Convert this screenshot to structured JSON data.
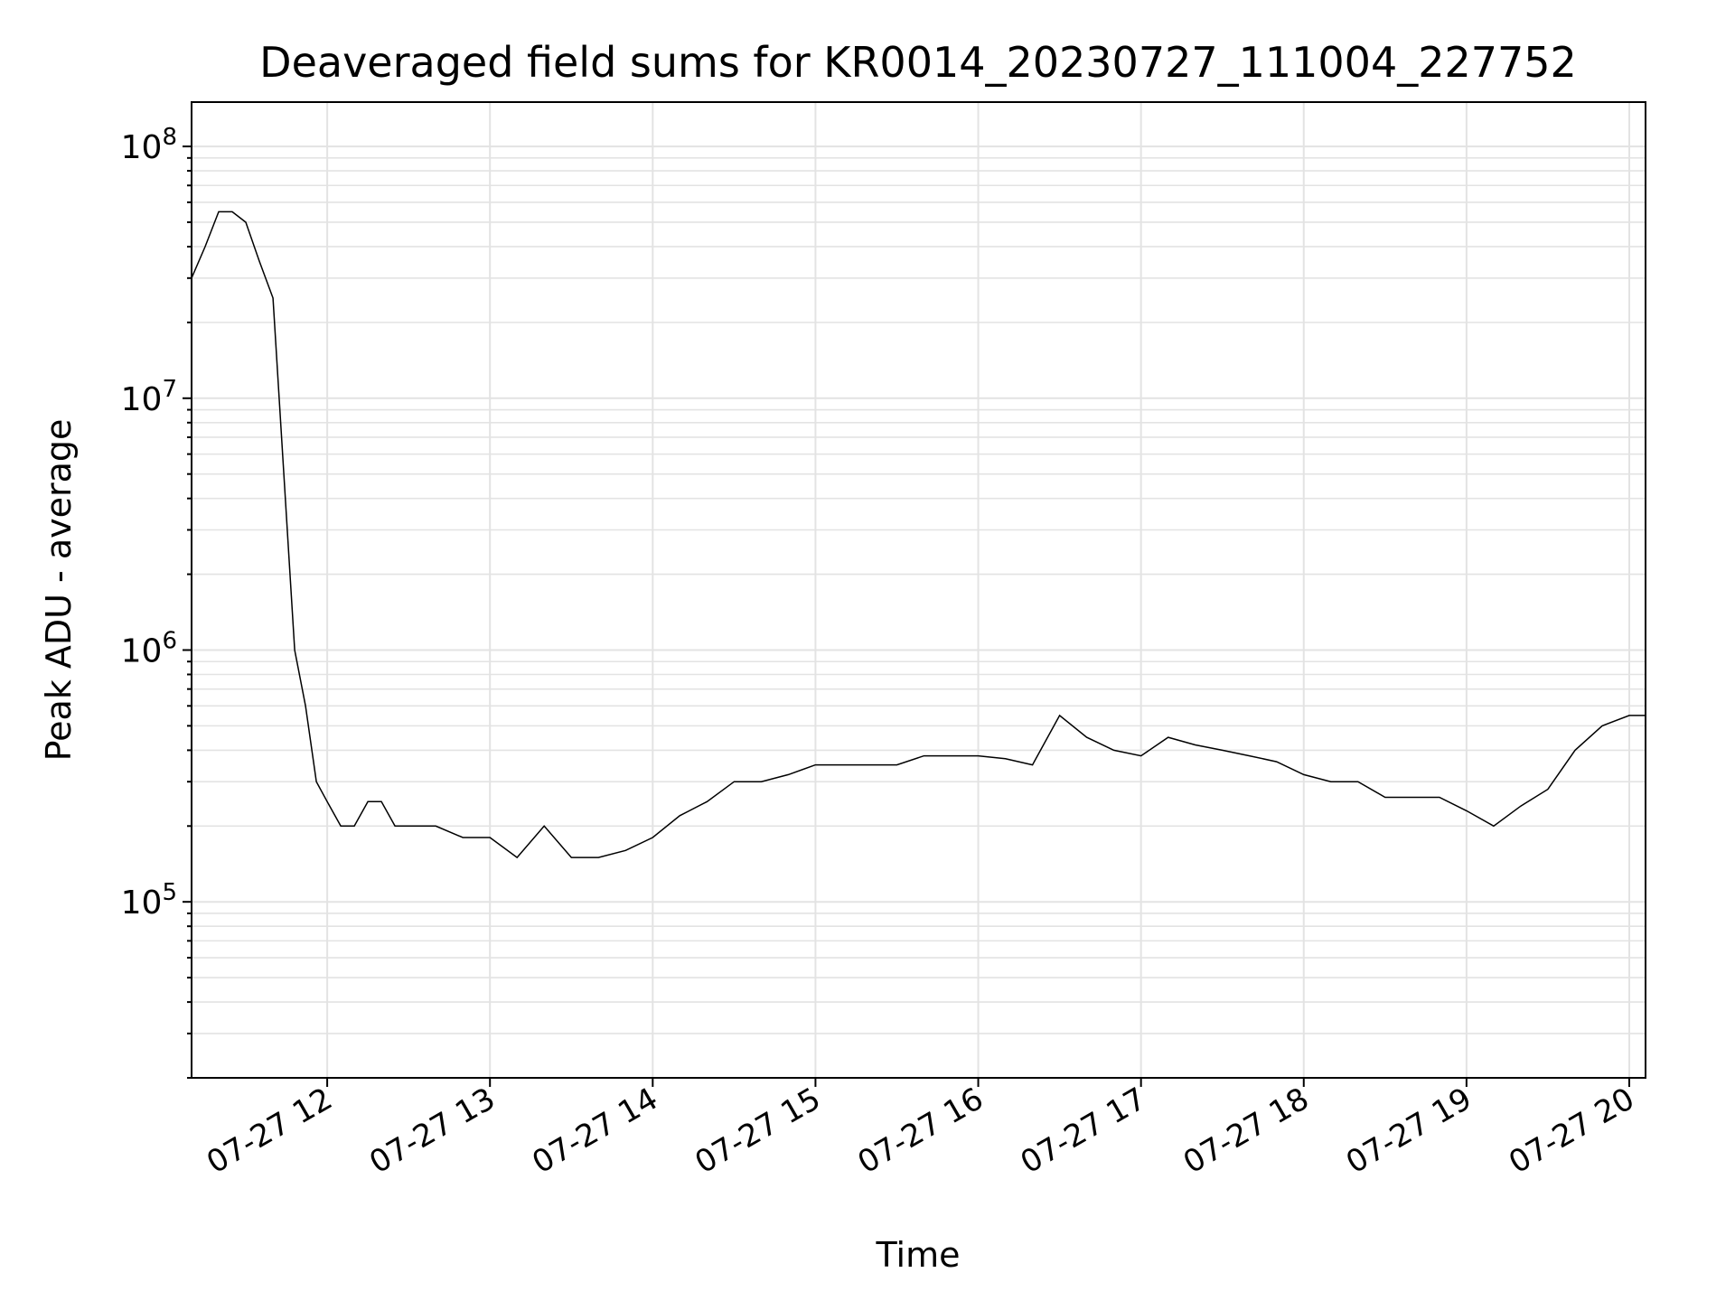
{
  "chart_data": {
    "type": "line",
    "title": "Deaveraged field sums for KR0014_20230727_111004_227752",
    "xlabel": "Time",
    "ylabel": "Peak ADU - average",
    "yscale": "log",
    "ylim": [
      20000,
      150000000
    ],
    "xlim": [
      "2023-07-27 11:10",
      "2023-07-27 20:06"
    ],
    "grid": true,
    "legend": "none",
    "line_color": "#000000",
    "x_tick_labels": [
      "07-27 12",
      "07-27 13",
      "07-27 14",
      "07-27 15",
      "07-27 16",
      "07-27 17",
      "07-27 18",
      "07-27 19",
      "07-27 20"
    ],
    "y_tick_labels": [
      {
        "base": "10",
        "exp": "5",
        "value": 100000
      },
      {
        "base": "10",
        "exp": "6",
        "value": 1000000
      },
      {
        "base": "10",
        "exp": "7",
        "value": 10000000
      },
      {
        "base": "10",
        "exp": "8",
        "value": 100000000
      }
    ],
    "series": [
      {
        "x": [
          "2023-07-27 11:10",
          "2023-07-27 11:15",
          "2023-07-27 11:20",
          "2023-07-27 11:25",
          "2023-07-27 11:30",
          "2023-07-27 11:35",
          "2023-07-27 11:40",
          "2023-07-27 11:44",
          "2023-07-27 11:48",
          "2023-07-27 11:52",
          "2023-07-27 11:56",
          "2023-07-27 12:00",
          "2023-07-27 12:05",
          "2023-07-27 12:10",
          "2023-07-27 12:15",
          "2023-07-27 12:20",
          "2023-07-27 12:25",
          "2023-07-27 12:30",
          "2023-07-27 12:40",
          "2023-07-27 12:50",
          "2023-07-27 13:00",
          "2023-07-27 13:10",
          "2023-07-27 13:20",
          "2023-07-27 13:30",
          "2023-07-27 13:40",
          "2023-07-27 13:50",
          "2023-07-27 14:00",
          "2023-07-27 14:10",
          "2023-07-27 14:20",
          "2023-07-27 14:30",
          "2023-07-27 14:40",
          "2023-07-27 14:50",
          "2023-07-27 15:00",
          "2023-07-27 15:10",
          "2023-07-27 15:20",
          "2023-07-27 15:30",
          "2023-07-27 15:40",
          "2023-07-27 15:50",
          "2023-07-27 16:00",
          "2023-07-27 16:10",
          "2023-07-27 16:20",
          "2023-07-27 16:30",
          "2023-07-27 16:40",
          "2023-07-27 16:50",
          "2023-07-27 17:00",
          "2023-07-27 17:10",
          "2023-07-27 17:20",
          "2023-07-27 17:30",
          "2023-07-27 17:40",
          "2023-07-27 17:50",
          "2023-07-27 18:00",
          "2023-07-27 18:10",
          "2023-07-27 18:20",
          "2023-07-27 18:30",
          "2023-07-27 18:40",
          "2023-07-27 18:50",
          "2023-07-27 19:00",
          "2023-07-27 19:10",
          "2023-07-27 19:20",
          "2023-07-27 19:30",
          "2023-07-27 19:40",
          "2023-07-27 19:50",
          "2023-07-27 20:00",
          "2023-07-27 20:06"
        ],
        "y": [
          30000000,
          40000000,
          55000000,
          55000000,
          50000000,
          35000000,
          25000000,
          5000000,
          1000000,
          600000,
          300000,
          250000,
          200000,
          200000,
          250000,
          250000,
          200000,
          200000,
          200000,
          180000,
          180000,
          150000,
          200000,
          150000,
          150000,
          160000,
          180000,
          220000,
          250000,
          300000,
          300000,
          320000,
          350000,
          350000,
          350000,
          350000,
          380000,
          380000,
          380000,
          370000,
          350000,
          550000,
          450000,
          400000,
          380000,
          450000,
          420000,
          400000,
          380000,
          360000,
          320000,
          300000,
          300000,
          260000,
          260000,
          260000,
          230000,
          200000,
          240000,
          280000,
          400000,
          500000,
          550000,
          550000
        ]
      }
    ]
  }
}
